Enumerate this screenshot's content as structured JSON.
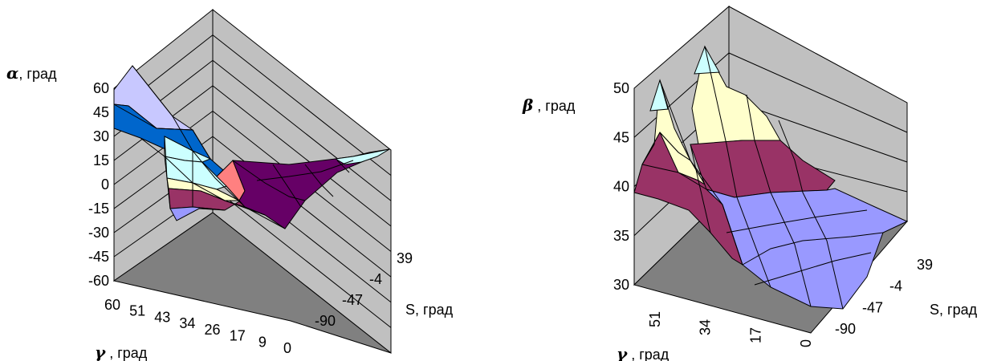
{
  "chart_data": [
    {
      "type": "surface",
      "ylabel_symbol": "α",
      "ylabel_unit": ", град",
      "zticks": [
        "60",
        "45",
        "30",
        "15",
        "0",
        "-15",
        "-30",
        "-45",
        "-60"
      ],
      "zlim": [
        -60,
        60
      ],
      "gamma_label_symbol": "γ",
      "gamma_label_unit": " , град",
      "gamma_ticks": [
        "60",
        "51",
        "43",
        "34",
        "26",
        "17",
        "9",
        "0"
      ],
      "s_label": "S, град",
      "s_ticks": [
        "39",
        "-4",
        "-47",
        "-90"
      ],
      "colors": {
        "wall": "#c0c0c0",
        "floor": "#808080",
        "bands": [
          "#c8c8ff",
          "#0066cc",
          "#ff8080",
          "#ffffcc",
          "#ccffff",
          "#993366",
          "#660066",
          "#9999ff"
        ]
      }
    },
    {
      "type": "surface",
      "ylabel_symbol": "β",
      "ylabel_unit": " , град",
      "zticks": [
        "50",
        "45",
        "40",
        "35",
        "30"
      ],
      "zlim": [
        30,
        50
      ],
      "gamma_label_symbol": "γ",
      "gamma_label_unit": " , град",
      "gamma_ticks": [
        "51",
        "34",
        "17",
        "0"
      ],
      "s_label": "S, град",
      "s_ticks": [
        "39",
        "-4",
        "-47",
        "-90"
      ],
      "colors": {
        "wall": "#c0c0c0",
        "floor": "#808080",
        "bands": [
          "#ccffff",
          "#ffffcc",
          "#993366",
          "#9999ff"
        ]
      }
    }
  ]
}
